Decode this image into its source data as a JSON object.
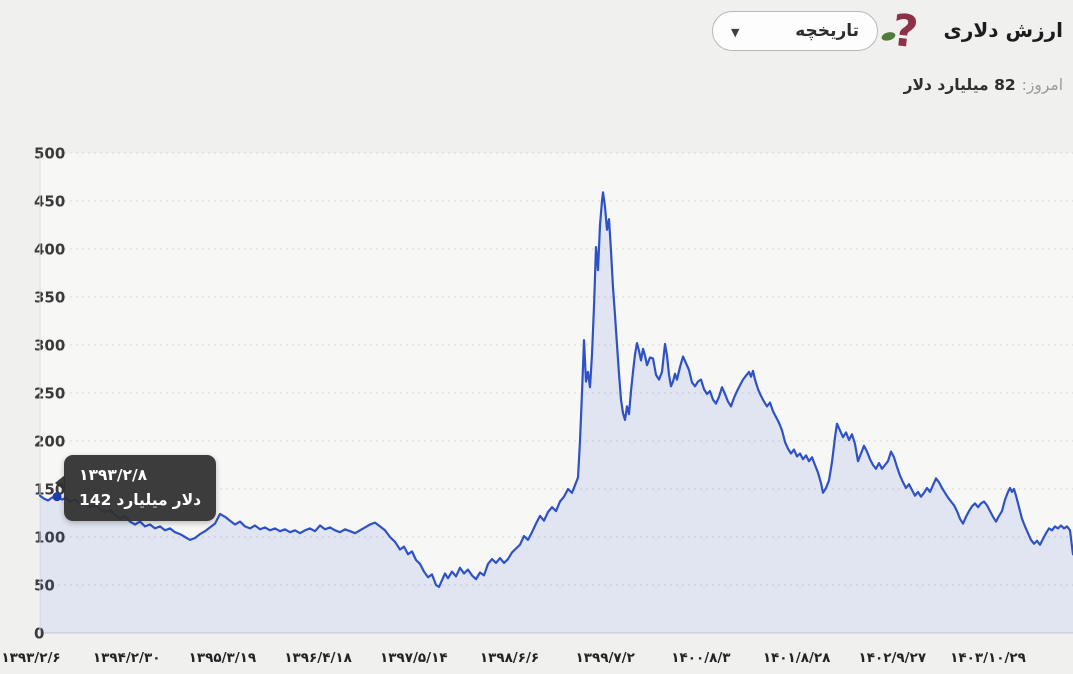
{
  "header": {
    "title": "ارزش دلاری",
    "dropdown": {
      "label": "تاریخچه",
      "caret": "▼"
    }
  },
  "today": {
    "label": "امروز:",
    "value": "82 میلیارد دلار"
  },
  "tooltip": {
    "date": "۱۳۹۳/۲/۸",
    "value_parts": [
      "142",
      "میلیارد",
      "دلار"
    ]
  },
  "chart_data": {
    "type": "area",
    "title": "ارزش دلاری - تاریخچه",
    "ylabel": "میلیارد دلار",
    "ylim": [
      0,
      500
    ],
    "grid": "horizontal-dashed",
    "y_ticks": [
      0,
      50,
      100,
      150,
      200,
      250,
      300,
      350,
      400,
      450,
      500
    ],
    "x_labels": [
      "۱۳۹۳/۲/۶",
      "۱۳۹۴/۲/۳۰",
      "۱۳۹۵/۳/۱۹",
      "۱۳۹۶/۴/۱۸",
      "۱۳۹۷/۵/۱۴",
      "۱۳۹۸/۶/۶",
      "۱۳۹۹/۷/۲",
      "۱۴۰۰/۸/۳",
      "۱۴۰۱/۸/۲۸",
      "۱۴۰۲/۹/۲۷",
      "۱۴۰۳/۱۰/۲۹"
    ],
    "today_value": 82,
    "highlight_point": {
      "x": 57,
      "value": 142,
      "date": "۱۳۹۳/۲/۸"
    },
    "colors": {
      "line": "#2e52c6",
      "fill": "rgba(74,106,208,0.13)",
      "grid": "#d7d7d6",
      "zero_line": "#cecece",
      "axis": "#e0e0df",
      "plot_bg": "#f7f7f6",
      "marker": "#1d3cae",
      "tooltip_bg": "#303030"
    },
    "series": [
      {
        "name": "ارزش دلاری",
        "points": [
          [
            40,
            143
          ],
          [
            44,
            140
          ],
          [
            48,
            138
          ],
          [
            52,
            141
          ],
          [
            57,
            142
          ],
          [
            62,
            139
          ],
          [
            66,
            141
          ],
          [
            70,
            137
          ],
          [
            75,
            139
          ],
          [
            80,
            134
          ],
          [
            85,
            136
          ],
          [
            90,
            131
          ],
          [
            95,
            133
          ],
          [
            100,
            129
          ],
          [
            105,
            126
          ],
          [
            110,
            128
          ],
          [
            115,
            123
          ],
          [
            120,
            119
          ],
          [
            125,
            122
          ],
          [
            130,
            116
          ],
          [
            135,
            113
          ],
          [
            140,
            116
          ],
          [
            145,
            111
          ],
          [
            150,
            113
          ],
          [
            155,
            109
          ],
          [
            160,
            111
          ],
          [
            165,
            107
          ],
          [
            170,
            109
          ],
          [
            175,
            105
          ],
          [
            180,
            103
          ],
          [
            185,
            100
          ],
          [
            190,
            97
          ],
          [
            195,
            99
          ],
          [
            200,
            103
          ],
          [
            205,
            106
          ],
          [
            210,
            110
          ],
          [
            215,
            114
          ],
          [
            220,
            124
          ],
          [
            225,
            121
          ],
          [
            230,
            117
          ],
          [
            235,
            113
          ],
          [
            240,
            116
          ],
          [
            245,
            111
          ],
          [
            250,
            109
          ],
          [
            255,
            112
          ],
          [
            260,
            108
          ],
          [
            265,
            110
          ],
          [
            270,
            107
          ],
          [
            275,
            109
          ],
          [
            280,
            106
          ],
          [
            285,
            108
          ],
          [
            290,
            105
          ],
          [
            295,
            107
          ],
          [
            300,
            104
          ],
          [
            305,
            107
          ],
          [
            310,
            109
          ],
          [
            315,
            106
          ],
          [
            320,
            112
          ],
          [
            325,
            108
          ],
          [
            330,
            110
          ],
          [
            335,
            107
          ],
          [
            340,
            105
          ],
          [
            345,
            108
          ],
          [
            350,
            106
          ],
          [
            355,
            104
          ],
          [
            360,
            107
          ],
          [
            365,
            110
          ],
          [
            370,
            113
          ],
          [
            375,
            115
          ],
          [
            380,
            111
          ],
          [
            385,
            107
          ],
          [
            390,
            100
          ],
          [
            395,
            95
          ],
          [
            400,
            87
          ],
          [
            404,
            90
          ],
          [
            408,
            82
          ],
          [
            412,
            85
          ],
          [
            416,
            76
          ],
          [
            420,
            72
          ],
          [
            424,
            64
          ],
          [
            428,
            58
          ],
          [
            432,
            61
          ],
          [
            436,
            50
          ],
          [
            439,
            48
          ],
          [
            442,
            55
          ],
          [
            445,
            62
          ],
          [
            448,
            57
          ],
          [
            452,
            64
          ],
          [
            456,
            59
          ],
          [
            460,
            68
          ],
          [
            464,
            62
          ],
          [
            468,
            66
          ],
          [
            472,
            60
          ],
          [
            476,
            56
          ],
          [
            480,
            63
          ],
          [
            484,
            60
          ],
          [
            488,
            72
          ],
          [
            492,
            77
          ],
          [
            496,
            73
          ],
          [
            500,
            78
          ],
          [
            504,
            73
          ],
          [
            508,
            77
          ],
          [
            512,
            84
          ],
          [
            516,
            88
          ],
          [
            520,
            92
          ],
          [
            524,
            101
          ],
          [
            528,
            97
          ],
          [
            532,
            105
          ],
          [
            536,
            114
          ],
          [
            540,
            122
          ],
          [
            544,
            117
          ],
          [
            548,
            126
          ],
          [
            552,
            131
          ],
          [
            556,
            127
          ],
          [
            560,
            137
          ],
          [
            564,
            142
          ],
          [
            568,
            150
          ],
          [
            572,
            146
          ],
          [
            575,
            154
          ],
          [
            578,
            162
          ],
          [
            580,
            200
          ],
          [
            582,
            250
          ],
          [
            584,
            305
          ],
          [
            586,
            262
          ],
          [
            588,
            272
          ],
          [
            590,
            256
          ],
          [
            592,
            290
          ],
          [
            594,
            340
          ],
          [
            596,
            402
          ],
          [
            598,
            378
          ],
          [
            600,
            425
          ],
          [
            602,
            450
          ],
          [
            603,
            459
          ],
          [
            605,
            444
          ],
          [
            607,
            420
          ],
          [
            609,
            431
          ],
          [
            611,
            398
          ],
          [
            613,
            360
          ],
          [
            615,
            331
          ],
          [
            617,
            300
          ],
          [
            619,
            270
          ],
          [
            621,
            243
          ],
          [
            623,
            229
          ],
          [
            625,
            222
          ],
          [
            627,
            236
          ],
          [
            629,
            228
          ],
          [
            631,
            252
          ],
          [
            633,
            272
          ],
          [
            635,
            290
          ],
          [
            637,
            302
          ],
          [
            639,
            294
          ],
          [
            641,
            284
          ],
          [
            643,
            296
          ],
          [
            645,
            289
          ],
          [
            647,
            279
          ],
          [
            650,
            287
          ],
          [
            653,
            286
          ],
          [
            656,
            269
          ],
          [
            659,
            264
          ],
          [
            662,
            272
          ],
          [
            665,
            301
          ],
          [
            667,
            289
          ],
          [
            669,
            269
          ],
          [
            671,
            257
          ],
          [
            673,
            262
          ],
          [
            675,
            270
          ],
          [
            677,
            264
          ],
          [
            680,
            277
          ],
          [
            683,
            288
          ],
          [
            686,
            281
          ],
          [
            689,
            274
          ],
          [
            692,
            261
          ],
          [
            695,
            257
          ],
          [
            698,
            262
          ],
          [
            701,
            264
          ],
          [
            704,
            254
          ],
          [
            707,
            249
          ],
          [
            710,
            252
          ],
          [
            713,
            243
          ],
          [
            716,
            239
          ],
          [
            719,
            246
          ],
          [
            722,
            256
          ],
          [
            725,
            249
          ],
          [
            728,
            241
          ],
          [
            731,
            236
          ],
          [
            734,
            245
          ],
          [
            737,
            252
          ],
          [
            740,
            258
          ],
          [
            743,
            264
          ],
          [
            746,
            268
          ],
          [
            749,
            272
          ],
          [
            751,
            267
          ],
          [
            753,
            273
          ],
          [
            755,
            264
          ],
          [
            758,
            254
          ],
          [
            761,
            247
          ],
          [
            764,
            241
          ],
          [
            767,
            236
          ],
          [
            770,
            240
          ],
          [
            773,
            231
          ],
          [
            776,
            225
          ],
          [
            779,
            219
          ],
          [
            782,
            211
          ],
          [
            785,
            199
          ],
          [
            788,
            192
          ],
          [
            791,
            187
          ],
          [
            794,
            191
          ],
          [
            797,
            184
          ],
          [
            800,
            187
          ],
          [
            803,
            181
          ],
          [
            806,
            185
          ],
          [
            809,
            179
          ],
          [
            812,
            183
          ],
          [
            815,
            175
          ],
          [
            818,
            167
          ],
          [
            821,
            156
          ],
          [
            823,
            146
          ],
          [
            826,
            151
          ],
          [
            829,
            159
          ],
          [
            832,
            178
          ],
          [
            835,
            204
          ],
          [
            837,
            218
          ],
          [
            840,
            211
          ],
          [
            843,
            204
          ],
          [
            846,
            209
          ],
          [
            849,
            201
          ],
          [
            852,
            207
          ],
          [
            855,
            197
          ],
          [
            858,
            179
          ],
          [
            861,
            187
          ],
          [
            864,
            195
          ],
          [
            867,
            189
          ],
          [
            870,
            181
          ],
          [
            873,
            175
          ],
          [
            876,
            171
          ],
          [
            879,
            177
          ],
          [
            882,
            171
          ],
          [
            885,
            175
          ],
          [
            888,
            179
          ],
          [
            891,
            189
          ],
          [
            894,
            183
          ],
          [
            897,
            173
          ],
          [
            900,
            164
          ],
          [
            903,
            157
          ],
          [
            906,
            151
          ],
          [
            909,
            155
          ],
          [
            912,
            149
          ],
          [
            915,
            143
          ],
          [
            918,
            147
          ],
          [
            921,
            142
          ],
          [
            924,
            146
          ],
          [
            927,
            151
          ],
          [
            930,
            147
          ],
          [
            933,
            154
          ],
          [
            936,
            161
          ],
          [
            939,
            157
          ],
          [
            942,
            151
          ],
          [
            945,
            146
          ],
          [
            948,
            141
          ],
          [
            951,
            137
          ],
          [
            954,
            133
          ],
          [
            957,
            127
          ],
          [
            960,
            119
          ],
          [
            963,
            114
          ],
          [
            966,
            121
          ],
          [
            969,
            127
          ],
          [
            972,
            132
          ],
          [
            975,
            135
          ],
          [
            978,
            131
          ],
          [
            981,
            135
          ],
          [
            984,
            137
          ],
          [
            987,
            133
          ],
          [
            990,
            127
          ],
          [
            993,
            121
          ],
          [
            996,
            116
          ],
          [
            999,
            122
          ],
          [
            1002,
            127
          ],
          [
            1005,
            139
          ],
          [
            1008,
            147
          ],
          [
            1010,
            151
          ],
          [
            1012,
            147
          ],
          [
            1014,
            150
          ],
          [
            1016,
            143
          ],
          [
            1018,
            135
          ],
          [
            1020,
            127
          ],
          [
            1022,
            119
          ],
          [
            1025,
            111
          ],
          [
            1028,
            104
          ],
          [
            1031,
            97
          ],
          [
            1034,
            93
          ],
          [
            1037,
            96
          ],
          [
            1040,
            92
          ],
          [
            1043,
            98
          ],
          [
            1046,
            104
          ],
          [
            1049,
            109
          ],
          [
            1052,
            107
          ],
          [
            1055,
            111
          ],
          [
            1058,
            109
          ],
          [
            1061,
            112
          ],
          [
            1064,
            109
          ],
          [
            1067,
            111
          ],
          [
            1070,
            107
          ],
          [
            1072,
            90
          ],
          [
            1073,
            82
          ]
        ]
      }
    ]
  }
}
